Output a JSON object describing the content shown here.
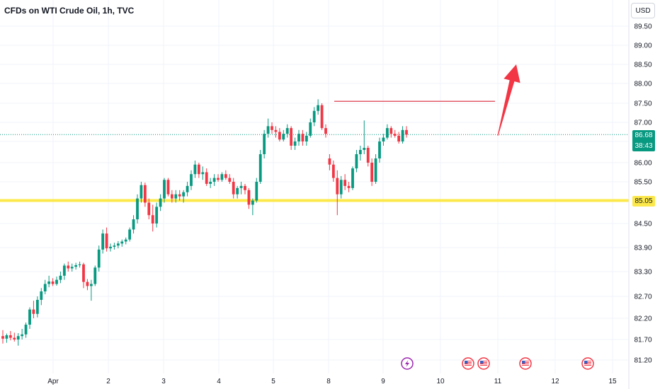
{
  "header": {
    "title": "CFDs on WTI Crude Oil, 1h, TVC",
    "currency": "USD"
  },
  "colors": {
    "up": "#089981",
    "down": "#f23645",
    "level": "#fce84a",
    "resistance": "#e25b67",
    "arrow": "#f23645"
  },
  "price_label": {
    "price": "86.68",
    "countdown": "38:43"
  },
  "level_label": {
    "price": "85.05"
  },
  "event_icons": [
    "lightning-icon",
    "us-flag-icon",
    "us-flag-icon",
    "us-flag-icon",
    "us-flag-icon"
  ],
  "chart_data": {
    "type": "candlestick",
    "title": "CFDs on WTI Crude Oil, 1h, TVC",
    "y_ticks": [
      "89.50",
      "89.00",
      "88.50",
      "88.00",
      "87.50",
      "87.00",
      "86.50",
      "86.00",
      "85.50",
      "84.50",
      "83.90",
      "83.30",
      "82.70",
      "82.20",
      "81.70",
      "81.20"
    ],
    "x_ticks": [
      "Apr",
      "2",
      "3",
      "4",
      "5",
      "8",
      "9",
      "10",
      "11",
      "12",
      "15"
    ],
    "current_price": 86.68,
    "horizontal_level": 85.05,
    "resistance_line": 87.55,
    "projection_arrow": {
      "from": 86.65,
      "to": 88.5
    },
    "candles": [
      {
        "o": 81.78,
        "h": 81.92,
        "l": 81.6,
        "c": 81.72
      },
      {
        "o": 81.72,
        "h": 81.84,
        "l": 81.62,
        "c": 81.8
      },
      {
        "o": 81.8,
        "h": 81.9,
        "l": 81.68,
        "c": 81.74
      },
      {
        "o": 81.74,
        "h": 81.86,
        "l": 81.65,
        "c": 81.7
      },
      {
        "o": 81.7,
        "h": 81.85,
        "l": 81.55,
        "c": 81.78
      },
      {
        "o": 81.78,
        "h": 81.95,
        "l": 81.7,
        "c": 81.82
      },
      {
        "o": 81.82,
        "h": 82.1,
        "l": 81.74,
        "c": 82.05
      },
      {
        "o": 82.05,
        "h": 82.45,
        "l": 81.95,
        "c": 82.4
      },
      {
        "o": 82.4,
        "h": 82.6,
        "l": 82.2,
        "c": 82.3
      },
      {
        "o": 82.3,
        "h": 82.7,
        "l": 82.22,
        "c": 82.62
      },
      {
        "o": 82.62,
        "h": 82.9,
        "l": 82.5,
        "c": 82.82
      },
      {
        "o": 82.82,
        "h": 83.1,
        "l": 82.75,
        "c": 83.0
      },
      {
        "o": 83.0,
        "h": 83.2,
        "l": 82.92,
        "c": 83.06
      },
      {
        "o": 83.06,
        "h": 83.14,
        "l": 82.95,
        "c": 83.0
      },
      {
        "o": 83.0,
        "h": 83.18,
        "l": 82.96,
        "c": 83.1
      },
      {
        "o": 83.1,
        "h": 83.3,
        "l": 83.02,
        "c": 83.2
      },
      {
        "o": 83.2,
        "h": 83.5,
        "l": 83.1,
        "c": 83.45
      },
      {
        "o": 83.45,
        "h": 83.55,
        "l": 83.3,
        "c": 83.38
      },
      {
        "o": 83.38,
        "h": 83.5,
        "l": 83.3,
        "c": 83.42
      },
      {
        "o": 83.42,
        "h": 83.52,
        "l": 83.35,
        "c": 83.46
      },
      {
        "o": 83.46,
        "h": 83.55,
        "l": 83.4,
        "c": 83.48
      },
      {
        "o": 83.48,
        "h": 83.52,
        "l": 82.9,
        "c": 83.05
      },
      {
        "o": 83.05,
        "h": 83.12,
        "l": 82.85,
        "c": 82.95
      },
      {
        "o": 82.95,
        "h": 83.1,
        "l": 82.6,
        "c": 83.0
      },
      {
        "o": 83.0,
        "h": 83.45,
        "l": 82.95,
        "c": 83.4
      },
      {
        "o": 83.4,
        "h": 83.95,
        "l": 83.3,
        "c": 83.85
      },
      {
        "o": 83.85,
        "h": 84.35,
        "l": 83.75,
        "c": 84.25
      },
      {
        "o": 84.25,
        "h": 84.4,
        "l": 83.8,
        "c": 83.88
      },
      {
        "o": 83.88,
        "h": 84.0,
        "l": 83.8,
        "c": 83.92
      },
      {
        "o": 83.92,
        "h": 84.02,
        "l": 83.85,
        "c": 83.95
      },
      {
        "o": 83.95,
        "h": 84.06,
        "l": 83.88,
        "c": 84.0
      },
      {
        "o": 84.0,
        "h": 84.1,
        "l": 83.92,
        "c": 84.05
      },
      {
        "o": 84.05,
        "h": 84.15,
        "l": 83.98,
        "c": 84.1
      },
      {
        "o": 84.1,
        "h": 84.4,
        "l": 84.05,
        "c": 84.35
      },
      {
        "o": 84.35,
        "h": 84.7,
        "l": 84.25,
        "c": 84.6
      },
      {
        "o": 84.6,
        "h": 85.2,
        "l": 84.5,
        "c": 85.1
      },
      {
        "o": 85.1,
        "h": 85.5,
        "l": 85.0,
        "c": 85.42
      },
      {
        "o": 85.42,
        "h": 85.48,
        "l": 84.9,
        "c": 85.0
      },
      {
        "o": 85.0,
        "h": 85.1,
        "l": 84.6,
        "c": 84.7
      },
      {
        "o": 84.7,
        "h": 84.95,
        "l": 84.3,
        "c": 84.5
      },
      {
        "o": 84.5,
        "h": 85.0,
        "l": 84.4,
        "c": 84.9
      },
      {
        "o": 84.9,
        "h": 85.2,
        "l": 84.8,
        "c": 85.1
      },
      {
        "o": 85.1,
        "h": 85.6,
        "l": 85.0,
        "c": 85.55
      },
      {
        "o": 85.55,
        "h": 85.6,
        "l": 85.15,
        "c": 85.2
      },
      {
        "o": 85.2,
        "h": 85.3,
        "l": 85.0,
        "c": 85.1
      },
      {
        "o": 85.1,
        "h": 85.3,
        "l": 85.0,
        "c": 85.2
      },
      {
        "o": 85.2,
        "h": 85.3,
        "l": 85.05,
        "c": 85.15
      },
      {
        "o": 85.15,
        "h": 85.3,
        "l": 85.0,
        "c": 85.25
      },
      {
        "o": 85.25,
        "h": 85.5,
        "l": 85.15,
        "c": 85.4
      },
      {
        "o": 85.4,
        "h": 85.8,
        "l": 85.3,
        "c": 85.7
      },
      {
        "o": 85.7,
        "h": 86.05,
        "l": 85.6,
        "c": 85.95
      },
      {
        "o": 85.95,
        "h": 86.0,
        "l": 85.6,
        "c": 85.7
      },
      {
        "o": 85.7,
        "h": 85.9,
        "l": 85.55,
        "c": 85.75
      },
      {
        "o": 85.75,
        "h": 85.85,
        "l": 85.4,
        "c": 85.45
      },
      {
        "o": 85.45,
        "h": 85.6,
        "l": 85.35,
        "c": 85.5
      },
      {
        "o": 85.5,
        "h": 85.7,
        "l": 85.4,
        "c": 85.6
      },
      {
        "o": 85.6,
        "h": 85.7,
        "l": 85.5,
        "c": 85.55
      },
      {
        "o": 85.55,
        "h": 85.75,
        "l": 85.5,
        "c": 85.7
      },
      {
        "o": 85.7,
        "h": 85.8,
        "l": 85.55,
        "c": 85.6
      },
      {
        "o": 85.6,
        "h": 85.7,
        "l": 85.45,
        "c": 85.5
      },
      {
        "o": 85.5,
        "h": 85.6,
        "l": 85.1,
        "c": 85.2
      },
      {
        "o": 85.2,
        "h": 85.4,
        "l": 85.1,
        "c": 85.35
      },
      {
        "o": 85.35,
        "h": 85.5,
        "l": 85.2,
        "c": 85.4
      },
      {
        "o": 85.4,
        "h": 85.45,
        "l": 85.2,
        "c": 85.3
      },
      {
        "o": 85.3,
        "h": 85.35,
        "l": 84.85,
        "c": 84.95
      },
      {
        "o": 84.95,
        "h": 85.1,
        "l": 84.7,
        "c": 85.05
      },
      {
        "o": 85.05,
        "h": 85.6,
        "l": 85.0,
        "c": 85.5
      },
      {
        "o": 85.5,
        "h": 86.3,
        "l": 85.45,
        "c": 86.2
      },
      {
        "o": 86.2,
        "h": 86.8,
        "l": 86.1,
        "c": 86.7
      },
      {
        "o": 86.7,
        "h": 87.1,
        "l": 86.6,
        "c": 86.9
      },
      {
        "o": 86.9,
        "h": 87.0,
        "l": 86.7,
        "c": 86.8
      },
      {
        "o": 86.8,
        "h": 86.9,
        "l": 86.6,
        "c": 86.75
      },
      {
        "o": 86.75,
        "h": 86.85,
        "l": 86.5,
        "c": 86.55
      },
      {
        "o": 86.55,
        "h": 86.8,
        "l": 86.5,
        "c": 86.7
      },
      {
        "o": 86.7,
        "h": 86.95,
        "l": 86.6,
        "c": 86.85
      },
      {
        "o": 86.85,
        "h": 86.9,
        "l": 86.3,
        "c": 86.4
      },
      {
        "o": 86.4,
        "h": 86.6,
        "l": 86.3,
        "c": 86.5
      },
      {
        "o": 86.5,
        "h": 86.8,
        "l": 86.4,
        "c": 86.7
      },
      {
        "o": 86.7,
        "h": 86.8,
        "l": 86.4,
        "c": 86.5
      },
      {
        "o": 86.5,
        "h": 86.75,
        "l": 86.4,
        "c": 86.65
      },
      {
        "o": 86.65,
        "h": 87.1,
        "l": 86.6,
        "c": 87.0
      },
      {
        "o": 87.0,
        "h": 87.4,
        "l": 86.9,
        "c": 87.3
      },
      {
        "o": 87.3,
        "h": 87.6,
        "l": 87.2,
        "c": 87.45
      },
      {
        "o": 87.45,
        "h": 87.5,
        "l": 86.8,
        "c": 86.85
      },
      {
        "o": 86.85,
        "h": 86.95,
        "l": 86.6,
        "c": 86.7
      },
      {
        "o": 86.1,
        "h": 86.2,
        "l": 85.8,
        "c": 85.95
      },
      {
        "o": 85.95,
        "h": 86.05,
        "l": 85.5,
        "c": 85.6
      },
      {
        "o": 85.6,
        "h": 85.8,
        "l": 84.7,
        "c": 85.2
      },
      {
        "o": 85.2,
        "h": 85.65,
        "l": 85.1,
        "c": 85.55
      },
      {
        "o": 85.55,
        "h": 85.7,
        "l": 85.3,
        "c": 85.4
      },
      {
        "o": 85.4,
        "h": 85.5,
        "l": 85.25,
        "c": 85.35
      },
      {
        "o": 85.35,
        "h": 85.9,
        "l": 85.3,
        "c": 85.85
      },
      {
        "o": 85.85,
        "h": 86.3,
        "l": 85.75,
        "c": 86.2
      },
      {
        "o": 86.2,
        "h": 86.4,
        "l": 86.05,
        "c": 86.3
      },
      {
        "o": 86.3,
        "h": 87.05,
        "l": 86.2,
        "c": 86.35
      },
      {
        "o": 86.35,
        "h": 86.4,
        "l": 85.9,
        "c": 86.0
      },
      {
        "o": 86.0,
        "h": 86.1,
        "l": 85.4,
        "c": 85.5
      },
      {
        "o": 85.5,
        "h": 86.2,
        "l": 85.45,
        "c": 86.1
      },
      {
        "o": 86.1,
        "h": 86.6,
        "l": 86.0,
        "c": 86.5
      },
      {
        "o": 86.5,
        "h": 86.7,
        "l": 86.4,
        "c": 86.6
      },
      {
        "o": 86.6,
        "h": 86.95,
        "l": 86.55,
        "c": 86.85
      },
      {
        "o": 86.85,
        "h": 86.9,
        "l": 86.6,
        "c": 86.7
      },
      {
        "o": 86.7,
        "h": 86.8,
        "l": 86.6,
        "c": 86.65
      },
      {
        "o": 86.65,
        "h": 86.75,
        "l": 86.45,
        "c": 86.5
      },
      {
        "o": 86.5,
        "h": 86.9,
        "l": 86.45,
        "c": 86.8
      },
      {
        "o": 86.8,
        "h": 86.9,
        "l": 86.6,
        "c": 86.68
      }
    ]
  }
}
